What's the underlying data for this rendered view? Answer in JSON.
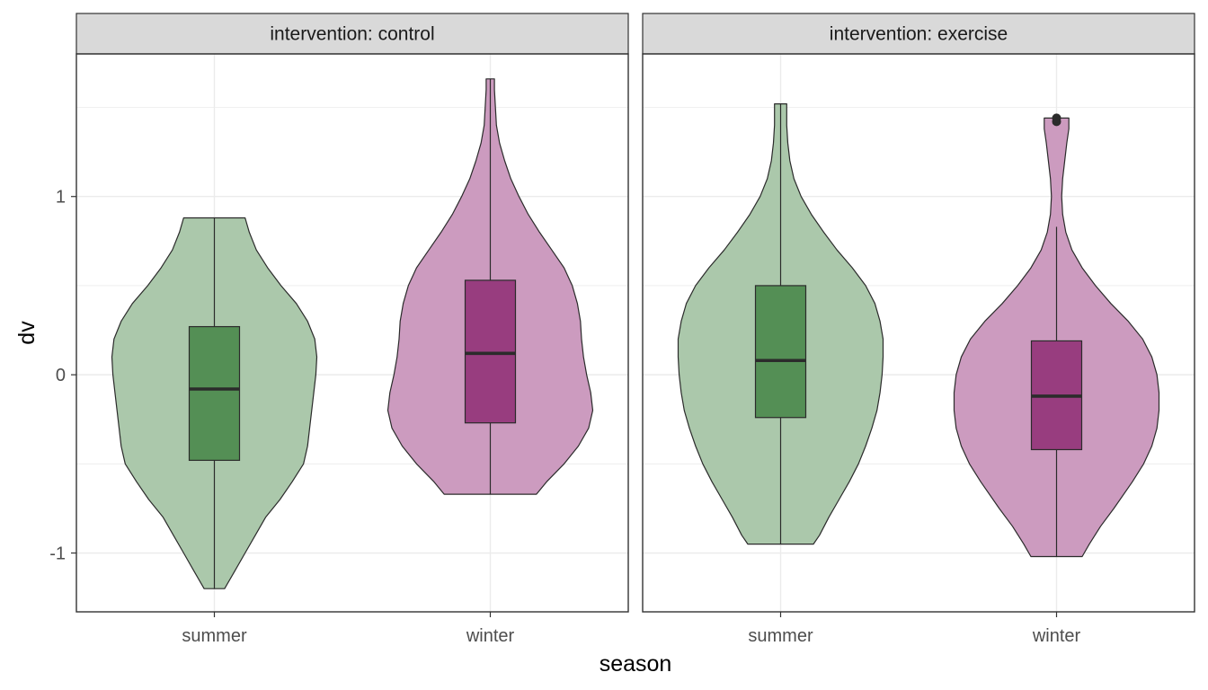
{
  "chart_data": {
    "type": "violin",
    "xlabel": "season",
    "ylabel": "dv",
    "ylim": [
      -1.33,
      1.8
    ],
    "y_ticks": [
      -1,
      0,
      1
    ],
    "y_tick_labels": [
      "-1",
      "0",
      "1"
    ],
    "categories": [
      "summer",
      "winter"
    ],
    "grid": true,
    "legend": "none",
    "colors": {
      "summer_violin": "#abc8ab",
      "summer_box": "#548f55",
      "winter_violin": "#cc9bbf",
      "winter_box": "#983d7f",
      "outline": "#2b2b2b",
      "strip_fill": "#d9d9d9",
      "grid": "#ebebeb"
    },
    "panels": [
      {
        "strip_label": "intervention: control",
        "groups": [
          {
            "category": "summer",
            "y_min": -1.2,
            "q1": -0.48,
            "median": -0.08,
            "q3": 0.27,
            "y_max": 0.88,
            "outliers": [],
            "density": [
              [
                -1.2,
                0.1
              ],
              [
                -1.1,
                0.2
              ],
              [
                -1.0,
                0.3
              ],
              [
                -0.9,
                0.4
              ],
              [
                -0.8,
                0.5
              ],
              [
                -0.7,
                0.64
              ],
              [
                -0.6,
                0.76
              ],
              [
                -0.5,
                0.87
              ],
              [
                -0.4,
                0.91
              ],
              [
                -0.3,
                0.93
              ],
              [
                -0.2,
                0.95
              ],
              [
                -0.1,
                0.97
              ],
              [
                0.0,
                0.99
              ],
              [
                0.1,
                1.0
              ],
              [
                0.2,
                0.98
              ],
              [
                0.3,
                0.91
              ],
              [
                0.4,
                0.8
              ],
              [
                0.5,
                0.65
              ],
              [
                0.6,
                0.52
              ],
              [
                0.7,
                0.41
              ],
              [
                0.8,
                0.34
              ],
              [
                0.88,
                0.3
              ]
            ]
          },
          {
            "category": "winter",
            "y_min": -0.67,
            "q1": -0.27,
            "median": 0.12,
            "q3": 0.53,
            "y_max": 1.66,
            "outliers": [],
            "density": [
              [
                -0.67,
                0.45
              ],
              [
                -0.6,
                0.55
              ],
              [
                -0.5,
                0.72
              ],
              [
                -0.4,
                0.86
              ],
              [
                -0.3,
                0.96
              ],
              [
                -0.2,
                1.0
              ],
              [
                -0.1,
                0.98
              ],
              [
                0.0,
                0.94
              ],
              [
                0.1,
                0.91
              ],
              [
                0.2,
                0.89
              ],
              [
                0.3,
                0.88
              ],
              [
                0.4,
                0.85
              ],
              [
                0.5,
                0.8
              ],
              [
                0.6,
                0.72
              ],
              [
                0.7,
                0.6
              ],
              [
                0.8,
                0.48
              ],
              [
                0.9,
                0.37
              ],
              [
                1.0,
                0.28
              ],
              [
                1.1,
                0.2
              ],
              [
                1.2,
                0.14
              ],
              [
                1.3,
                0.09
              ],
              [
                1.4,
                0.06
              ],
              [
                1.5,
                0.05
              ],
              [
                1.6,
                0.04
              ],
              [
                1.66,
                0.04
              ]
            ]
          }
        ]
      },
      {
        "strip_label": "intervention: exercise",
        "groups": [
          {
            "category": "summer",
            "y_min": -0.95,
            "q1": -0.24,
            "median": 0.08,
            "q3": 0.5,
            "y_max": 1.52,
            "outliers": [],
            "density": [
              [
                -0.95,
                0.32
              ],
              [
                -0.9,
                0.38
              ],
              [
                -0.8,
                0.47
              ],
              [
                -0.7,
                0.57
              ],
              [
                -0.6,
                0.67
              ],
              [
                -0.5,
                0.76
              ],
              [
                -0.4,
                0.83
              ],
              [
                -0.3,
                0.89
              ],
              [
                -0.2,
                0.94
              ],
              [
                -0.1,
                0.97
              ],
              [
                0.0,
                0.99
              ],
              [
                0.1,
                1.0
              ],
              [
                0.2,
                1.0
              ],
              [
                0.3,
                0.97
              ],
              [
                0.4,
                0.92
              ],
              [
                0.5,
                0.83
              ],
              [
                0.6,
                0.7
              ],
              [
                0.7,
                0.55
              ],
              [
                0.8,
                0.42
              ],
              [
                0.9,
                0.3
              ],
              [
                1.0,
                0.2
              ],
              [
                1.1,
                0.13
              ],
              [
                1.2,
                0.09
              ],
              [
                1.3,
                0.07
              ],
              [
                1.4,
                0.06
              ],
              [
                1.52,
                0.06
              ]
            ]
          },
          {
            "category": "winter",
            "y_min": -1.02,
            "q1": -0.42,
            "median": -0.12,
            "q3": 0.19,
            "y_max": 0.83,
            "outliers": [
              1.42,
              1.44
            ],
            "density": [
              [
                -1.02,
                0.25
              ],
              [
                -0.95,
                0.32
              ],
              [
                -0.85,
                0.43
              ],
              [
                -0.75,
                0.56
              ],
              [
                -0.6,
                0.74
              ],
              [
                -0.5,
                0.85
              ],
              [
                -0.4,
                0.93
              ],
              [
                -0.3,
                0.98
              ],
              [
                -0.2,
                1.0
              ],
              [
                -0.1,
                1.0
              ],
              [
                0.0,
                0.98
              ],
              [
                0.1,
                0.93
              ],
              [
                0.2,
                0.84
              ],
              [
                0.3,
                0.7
              ],
              [
                0.4,
                0.53
              ],
              [
                0.5,
                0.38
              ],
              [
                0.6,
                0.25
              ],
              [
                0.7,
                0.15
              ],
              [
                0.8,
                0.09
              ],
              [
                0.9,
                0.06
              ],
              [
                1.0,
                0.05
              ],
              [
                1.1,
                0.06
              ],
              [
                1.2,
                0.08
              ],
              [
                1.3,
                0.1
              ],
              [
                1.38,
                0.12
              ],
              [
                1.44,
                0.12
              ]
            ]
          }
        ]
      }
    ]
  }
}
